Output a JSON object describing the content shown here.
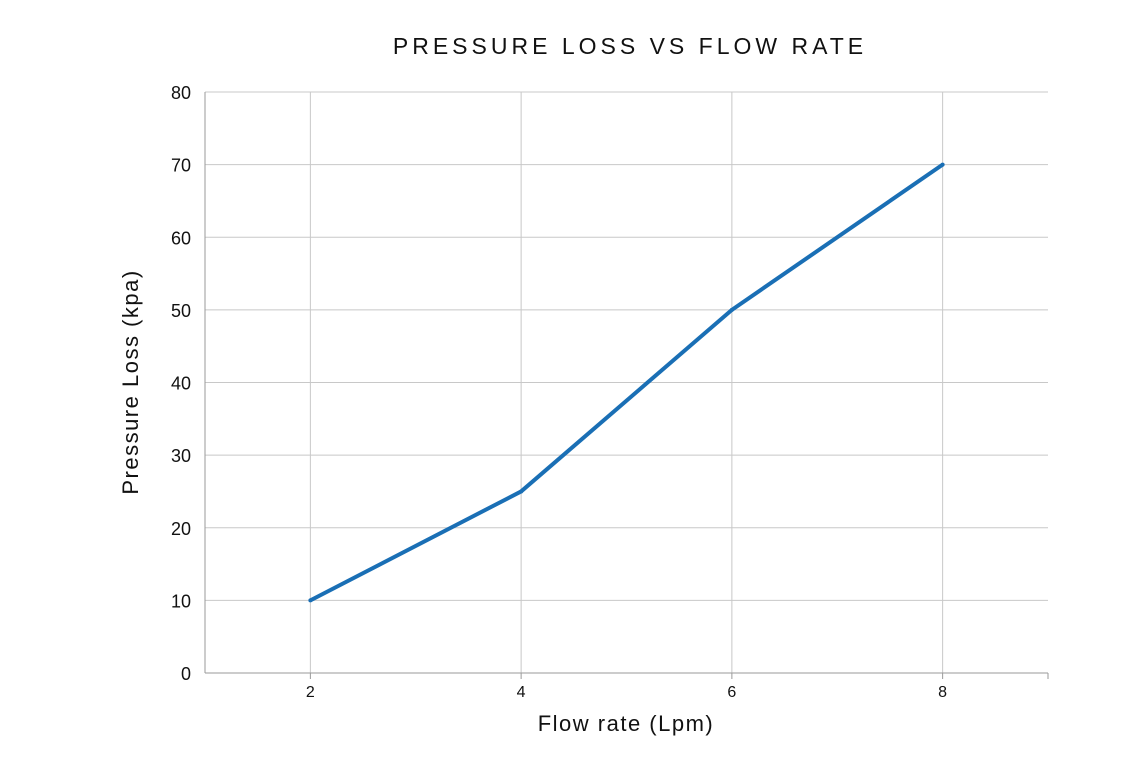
{
  "chart_data": {
    "type": "line",
    "title": "PRESSURE LOSS VS FLOW RATE",
    "xlabel": "Flow rate (Lpm)",
    "ylabel": "Pressure Loss (kpa)",
    "x": [
      2,
      4,
      6,
      8
    ],
    "x_ticks": [
      "2",
      "4",
      "6",
      "8"
    ],
    "xlim": [
      1,
      9
    ],
    "ylim": [
      0,
      80
    ],
    "y_ticks": [
      0,
      10,
      20,
      30,
      40,
      50,
      60,
      70,
      80
    ],
    "grid": true,
    "series": [
      {
        "name": "Pressure Loss",
        "values": [
          10,
          25,
          50,
          70
        ],
        "color": "#1a6fb5"
      }
    ]
  },
  "colors": {
    "grid": "#c8c8c8",
    "axis": "#9a9a9a",
    "line": "#1a6fb5",
    "text": "#111111"
  }
}
